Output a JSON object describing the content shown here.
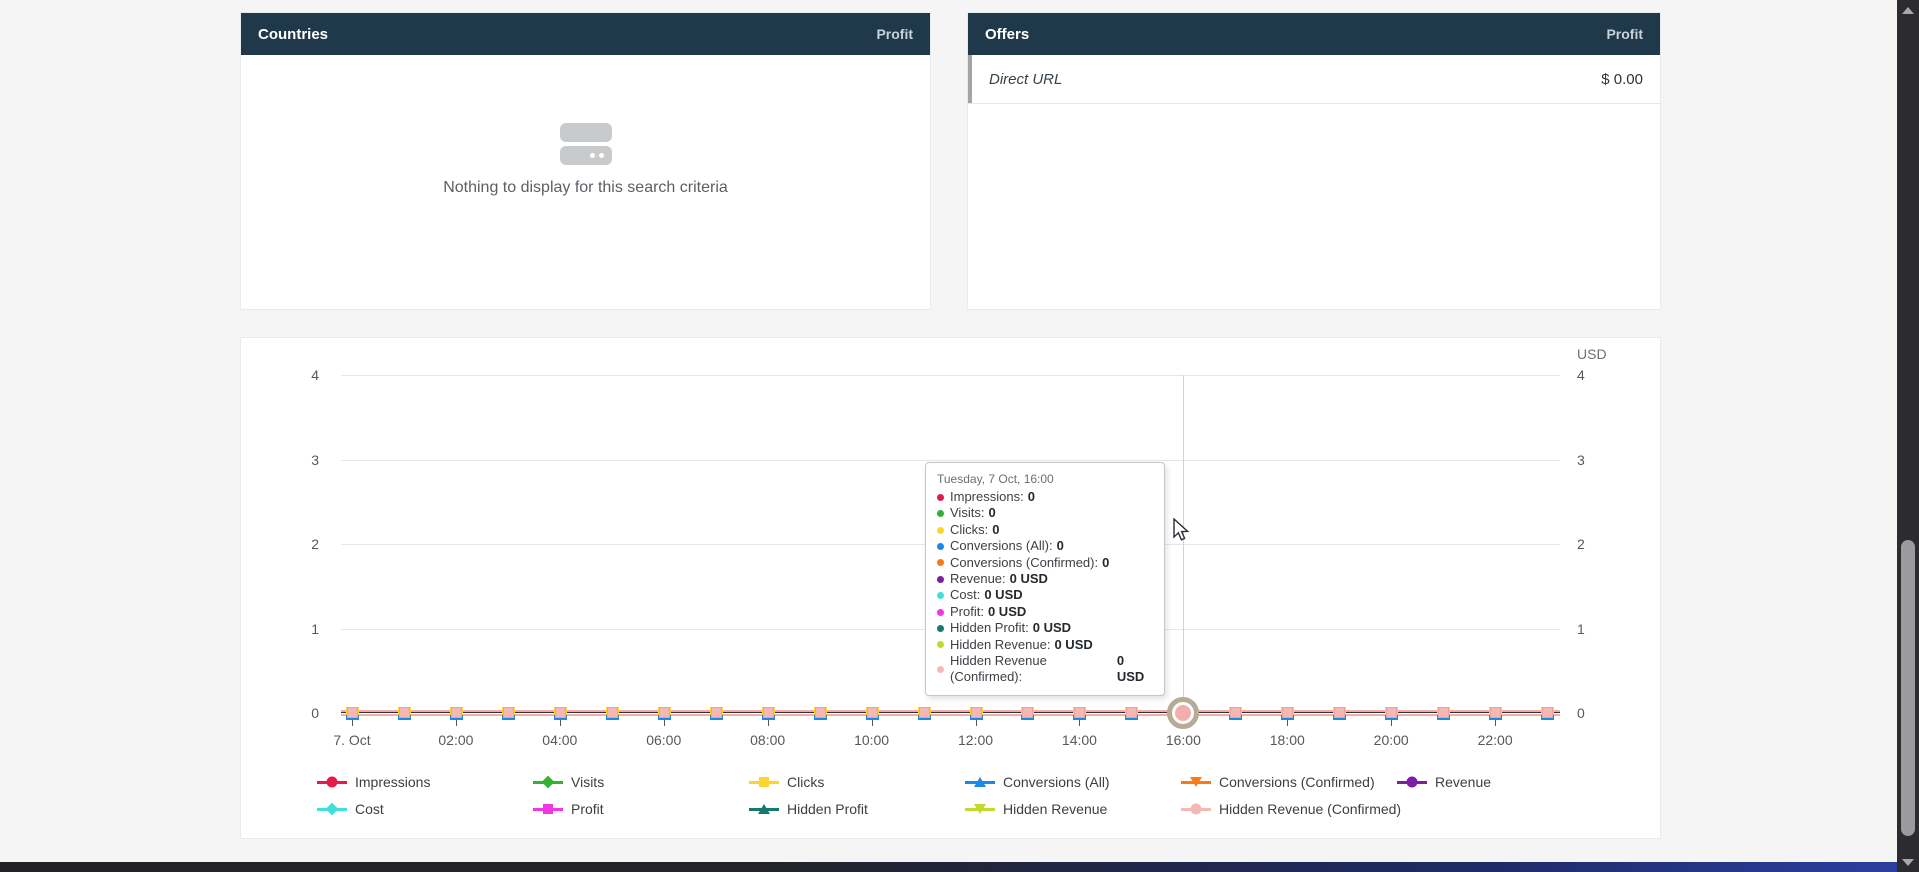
{
  "countries_panel": {
    "title": "Countries",
    "metric_label": "Profit",
    "empty_message": "Nothing to display for this search criteria"
  },
  "offers_panel": {
    "title": "Offers",
    "metric_label": "Profit",
    "rows": [
      {
        "label": "Direct URL",
        "value": "$ 0.00"
      }
    ]
  },
  "chart": {
    "unit_label": "USD",
    "y_ticks": [
      "4",
      "3",
      "2",
      "1",
      "0"
    ],
    "x_labels": [
      "7. Oct",
      "02:00",
      "04:00",
      "06:00",
      "08:00",
      "10:00",
      "12:00",
      "14:00",
      "16:00",
      "18:00",
      "20:00",
      "22:00"
    ],
    "hover_point_index": 16
  },
  "tooltip": {
    "title": "Tuesday, 7 Oct, 16:00",
    "items": [
      {
        "label": "Impressions",
        "value": "0",
        "color": "#e51a4c"
      },
      {
        "label": "Visits",
        "value": "0",
        "color": "#33b133"
      },
      {
        "label": "Clicks",
        "value": "0",
        "color": "#fdd430"
      },
      {
        "label": "Conversions (All)",
        "value": "0",
        "color": "#1e88e5"
      },
      {
        "label": "Conversions (Confirmed)",
        "value": "0",
        "color": "#f67c1b"
      },
      {
        "label": "Revenue",
        "value": "0 USD",
        "color": "#7b1fa2"
      },
      {
        "label": "Cost",
        "value": "0 USD",
        "color": "#3fe0dc"
      },
      {
        "label": "Profit",
        "value": "0 USD",
        "color": "#f136e3"
      },
      {
        "label": "Hidden Profit",
        "value": "0 USD",
        "color": "#15796d"
      },
      {
        "label": "Hidden Revenue",
        "value": "0 USD",
        "color": "#c4d92f"
      },
      {
        "label": "Hidden Revenue (Confirmed)",
        "value": "0 USD",
        "color": "#f5b8b4"
      }
    ]
  },
  "legend": {
    "items": [
      {
        "label": "Impressions",
        "color": "#e51a4c",
        "shape": "circle"
      },
      {
        "label": "Visits",
        "color": "#33b133",
        "shape": "diamond"
      },
      {
        "label": "Clicks",
        "color": "#fdd430",
        "shape": "square"
      },
      {
        "label": "Conversions (All)",
        "color": "#1e88e5",
        "shape": "triangle-up"
      },
      {
        "label": "Conversions (Confirmed)",
        "color": "#f67c1b",
        "shape": "triangle-down"
      },
      {
        "label": "Revenue",
        "color": "#7b1fa2",
        "shape": "circle"
      },
      {
        "label": "Cost",
        "color": "#3fe0dc",
        "shape": "diamond"
      },
      {
        "label": "Profit",
        "color": "#f136e3",
        "shape": "square"
      },
      {
        "label": "Hidden Profit",
        "color": "#15796d",
        "shape": "triangle-up"
      },
      {
        "label": "Hidden Revenue",
        "color": "#c4d92f",
        "shape": "triangle-down"
      },
      {
        "label": "Hidden Revenue (Confirmed)",
        "color": "#f5b8b4",
        "shape": "circle"
      }
    ]
  },
  "chart_data": {
    "type": "line",
    "date": "Tuesday, 7 Oct",
    "x": [
      "00:00",
      "01:00",
      "02:00",
      "03:00",
      "04:00",
      "05:00",
      "06:00",
      "07:00",
      "08:00",
      "09:00",
      "10:00",
      "11:00",
      "12:00",
      "13:00",
      "14:00",
      "15:00",
      "16:00",
      "17:00",
      "18:00",
      "19:00",
      "20:00",
      "21:00",
      "22:00",
      "23:00"
    ],
    "series": [
      {
        "name": "Impressions",
        "values": [
          0,
          0,
          0,
          0,
          0,
          0,
          0,
          0,
          0,
          0,
          0,
          0,
          0,
          0,
          0,
          0,
          0,
          0,
          0,
          0,
          0,
          0,
          0,
          0
        ]
      },
      {
        "name": "Visits",
        "values": [
          0,
          0,
          0,
          0,
          0,
          0,
          0,
          0,
          0,
          0,
          0,
          0,
          0,
          0,
          0,
          0,
          0,
          0,
          0,
          0,
          0,
          0,
          0,
          0
        ]
      },
      {
        "name": "Clicks",
        "values": [
          0,
          0,
          0,
          0,
          0,
          0,
          0,
          0,
          0,
          0,
          0,
          0,
          0,
          0,
          0,
          0,
          0,
          0,
          0,
          0,
          0,
          0,
          0,
          0
        ]
      },
      {
        "name": "Conversions (All)",
        "values": [
          0,
          0,
          0,
          0,
          0,
          0,
          0,
          0,
          0,
          0,
          0,
          0,
          0,
          0,
          0,
          0,
          0,
          0,
          0,
          0,
          0,
          0,
          0,
          0
        ]
      },
      {
        "name": "Conversions (Confirmed)",
        "values": [
          0,
          0,
          0,
          0,
          0,
          0,
          0,
          0,
          0,
          0,
          0,
          0,
          0,
          0,
          0,
          0,
          0,
          0,
          0,
          0,
          0,
          0,
          0,
          0
        ]
      },
      {
        "name": "Revenue",
        "values": [
          0,
          0,
          0,
          0,
          0,
          0,
          0,
          0,
          0,
          0,
          0,
          0,
          0,
          0,
          0,
          0,
          0,
          0,
          0,
          0,
          0,
          0,
          0,
          0
        ]
      },
      {
        "name": "Cost",
        "values": [
          0,
          0,
          0,
          0,
          0,
          0,
          0,
          0,
          0,
          0,
          0,
          0,
          0,
          0,
          0,
          0,
          0,
          0,
          0,
          0,
          0,
          0,
          0,
          0
        ]
      },
      {
        "name": "Profit",
        "values": [
          0,
          0,
          0,
          0,
          0,
          0,
          0,
          0,
          0,
          0,
          0,
          0,
          0,
          0,
          0,
          0,
          0,
          0,
          0,
          0,
          0,
          0,
          0,
          0
        ]
      },
      {
        "name": "Hidden Profit",
        "values": [
          0,
          0,
          0,
          0,
          0,
          0,
          0,
          0,
          0,
          0,
          0,
          0,
          0,
          0,
          0,
          0,
          0,
          0,
          0,
          0,
          0,
          0,
          0,
          0
        ]
      },
      {
        "name": "Hidden Revenue",
        "values": [
          0,
          0,
          0,
          0,
          0,
          0,
          0,
          0,
          0,
          0,
          0,
          0,
          0,
          0,
          0,
          0,
          0,
          0,
          0,
          0,
          0,
          0,
          0,
          0
        ]
      },
      {
        "name": "Hidden Revenue (Confirmed)",
        "values": [
          0,
          0,
          0,
          0,
          0,
          0,
          0,
          0,
          0,
          0,
          0,
          0,
          0,
          0,
          0,
          0,
          0,
          0,
          0,
          0,
          0,
          0,
          0,
          0
        ]
      }
    ],
    "ylabel": "USD",
    "ylim": [
      0,
      4
    ],
    "grid": true,
    "legend_position": "bottom"
  },
  "colors": {
    "panel_header_bg": "#20394a",
    "page_bg": "#f5f5f6",
    "grid_line": "#e6e6e6",
    "axis_line": "#303030",
    "flat_series_line": "#f2aca8"
  }
}
